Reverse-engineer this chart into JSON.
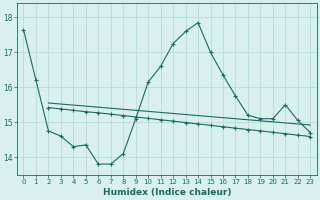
{
  "xlabel": "Humidex (Indice chaleur)",
  "bg_color": "#d8f0ee",
  "line_color": "#1a6b60",
  "grid_color": "#b8dcd8",
  "xlim": [
    -0.5,
    23.5
  ],
  "ylim": [
    13.5,
    18.4
  ],
  "yticks": [
    14,
    15,
    16,
    17,
    18
  ],
  "xticks": [
    0,
    1,
    2,
    3,
    4,
    5,
    6,
    7,
    8,
    9,
    10,
    11,
    12,
    13,
    14,
    15,
    16,
    17,
    18,
    19,
    20,
    21,
    22,
    23
  ],
  "line1_x": [
    0,
    1,
    2,
    3,
    4,
    5,
    6,
    7,
    8,
    9,
    10,
    11,
    12,
    13,
    14,
    15,
    16,
    17,
    18,
    19,
    20,
    21,
    22,
    23
  ],
  "line1_y": [
    17.65,
    16.2,
    14.75,
    14.6,
    14.3,
    14.35,
    13.8,
    13.8,
    14.1,
    15.1,
    16.15,
    16.6,
    17.25,
    17.6,
    17.85,
    17.0,
    16.35,
    15.75,
    15.2,
    15.1,
    15.1,
    15.5,
    15.05,
    14.7
  ],
  "line2_x": [
    2,
    3,
    4,
    5,
    6,
    7,
    8,
    9,
    10,
    11,
    12,
    13,
    14,
    15,
    16,
    17,
    18,
    19,
    20,
    21,
    22,
    23
  ],
  "line2_y": [
    15.42,
    15.38,
    15.34,
    15.3,
    15.27,
    15.23,
    15.19,
    15.15,
    15.11,
    15.07,
    15.03,
    14.99,
    14.95,
    14.91,
    14.87,
    14.83,
    14.79,
    14.75,
    14.71,
    14.67,
    14.63,
    14.59
  ],
  "line3_x": [
    2,
    3,
    4,
    5,
    6,
    7,
    8,
    9,
    10,
    11,
    12,
    13,
    14,
    15,
    16,
    17,
    18,
    19,
    20,
    21,
    22,
    23
  ],
  "line3_y": [
    15.55,
    15.52,
    15.49,
    15.46,
    15.43,
    15.4,
    15.37,
    15.34,
    15.31,
    15.28,
    15.25,
    15.22,
    15.19,
    15.16,
    15.13,
    15.1,
    15.07,
    15.04,
    15.01,
    14.98,
    14.95,
    14.92
  ]
}
